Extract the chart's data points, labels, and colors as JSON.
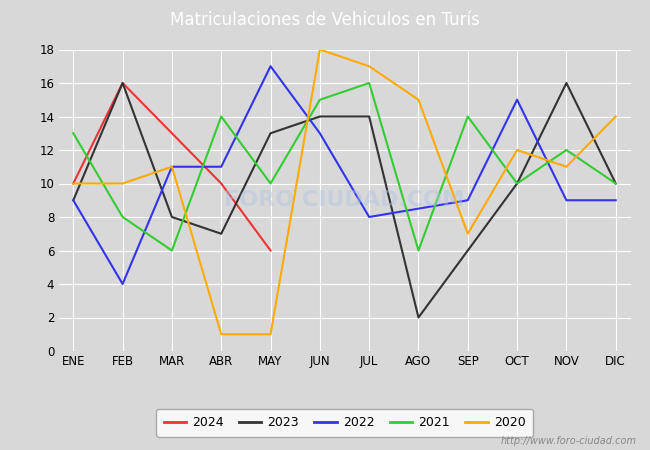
{
  "title": "Matriculaciones de Vehiculos en Turís",
  "title_color": "#ffffff",
  "title_bg_color": "#5b9bd5",
  "months": [
    "ENE",
    "FEB",
    "MAR",
    "ABR",
    "MAY",
    "JUN",
    "JUL",
    "AGO",
    "SEP",
    "OCT",
    "NOV",
    "DIC"
  ],
  "series": {
    "2024": {
      "color": "#ee3333",
      "values": [
        10,
        16,
        null,
        10,
        6,
        null,
        null,
        null,
        null,
        null,
        null,
        null
      ]
    },
    "2023": {
      "color": "#333333",
      "values": [
        9,
        16,
        8,
        7,
        13,
        14,
        14,
        2,
        6,
        10,
        16,
        10
      ]
    },
    "2022": {
      "color": "#3333ee",
      "values": [
        9,
        4,
        11,
        11,
        17,
        13,
        8,
        8.5,
        9,
        15,
        9,
        9
      ]
    },
    "2021": {
      "color": "#33cc33",
      "values": [
        13,
        8,
        6,
        14,
        10,
        15,
        16,
        6,
        14,
        10,
        12,
        10
      ]
    },
    "2020": {
      "color": "#ffaa00",
      "values": [
        10,
        10,
        11,
        1,
        1,
        18,
        17,
        15,
        7,
        12,
        11,
        14
      ]
    }
  },
  "ylim": [
    0,
    18
  ],
  "yticks": [
    0,
    2,
    4,
    6,
    8,
    10,
    12,
    14,
    16,
    18
  ],
  "legend_labels": [
    "2024",
    "2023",
    "2022",
    "2021",
    "2020"
  ],
  "watermark": "http://www.foro-ciudad.com",
  "background_color": "#d8d8d8",
  "plot_bg_color": "#d8d8d8",
  "grid_color": "#ffffff"
}
